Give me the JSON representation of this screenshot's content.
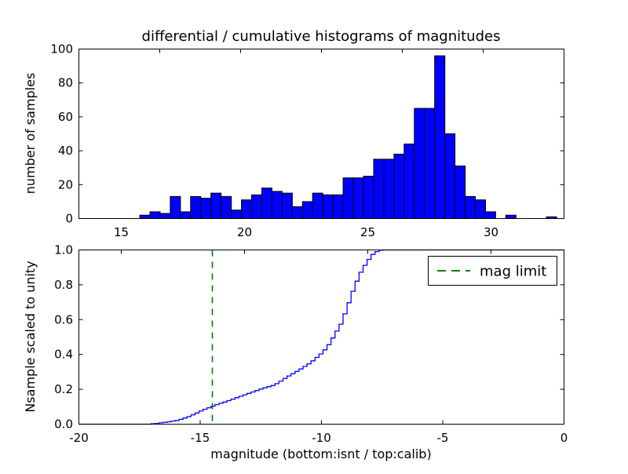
{
  "figure": {
    "background": "#ffffff",
    "frame_color": "#000000",
    "title": "differential / cumulative histograms of magnitudes"
  },
  "colors": {
    "bar_fill": "#0000ff",
    "bar_edge": "#000000",
    "cdf_line": "#0000ff",
    "mag_limit_line": "#008000"
  },
  "legend": {
    "label": "mag limit",
    "position": "upper right",
    "line_style": "dashed",
    "line_color": "#008000"
  },
  "chart_data": [
    {
      "type": "bar",
      "subtype": "histogram",
      "title": "differential / cumulative histograms of magnitudes",
      "xlabel": "",
      "ylabel": "number of samples",
      "xlim": [
        13.3,
        32.95
      ],
      "ylim": [
        0,
        100
      ],
      "xticks": [
        15,
        20,
        25,
        30
      ],
      "xtick_labels": [
        "15",
        "20",
        "25",
        "30"
      ],
      "yticks": [
        0,
        20,
        40,
        60,
        80,
        100
      ],
      "ytick_labels": [
        "0",
        "20",
        "40",
        "60",
        "80",
        "100"
      ],
      "bin_start": 15.75,
      "bin_width": 0.4125,
      "values": [
        2,
        4,
        3,
        13,
        4,
        13,
        12,
        15,
        13,
        5,
        11,
        14,
        18,
        16,
        15,
        7,
        10,
        15,
        14,
        14,
        24,
        24,
        25,
        35,
        35,
        38,
        44,
        65,
        65,
        96,
        50,
        31,
        13,
        11,
        4,
        0,
        2,
        0,
        0,
        0,
        1
      ],
      "grid": false
    },
    {
      "type": "line",
      "subtype": "cumulative-step",
      "xlabel": "magnitude (bottom:isnt / top:calib)",
      "ylabel": "Nsample scaled to unity",
      "xlim": [
        -20,
        0
      ],
      "ylim": [
        0.0,
        1.0
      ],
      "xticks": [
        -20,
        -15,
        -10,
        -5,
        0
      ],
      "xtick_labels": [
        "-20",
        "-15",
        "-10",
        "-5",
        "0"
      ],
      "yticks": [
        0.0,
        0.2,
        0.4,
        0.6,
        0.8,
        1.0
      ],
      "ytick_labels": [
        "0.0",
        "0.2",
        "0.4",
        "0.6",
        "0.8",
        "1.0"
      ],
      "cdf_points": [
        [
          -20,
          0.0
        ],
        [
          -17.2,
          0.0
        ],
        [
          -16.8,
          0.005
        ],
        [
          -16.4,
          0.013
        ],
        [
          -16.0,
          0.022
        ],
        [
          -15.6,
          0.04
        ],
        [
          -15.2,
          0.065
        ],
        [
          -15.0,
          0.08
        ],
        [
          -14.6,
          0.1
        ],
        [
          -14.5,
          0.107
        ],
        [
          -14.0,
          0.13
        ],
        [
          -13.5,
          0.155
        ],
        [
          -13.0,
          0.18
        ],
        [
          -12.5,
          0.205
        ],
        [
          -12.0,
          0.225
        ],
        [
          -11.5,
          0.27
        ],
        [
          -11.0,
          0.31
        ],
        [
          -10.5,
          0.355
        ],
        [
          -10.0,
          0.415
        ],
        [
          -9.75,
          0.46
        ],
        [
          -9.5,
          0.52
        ],
        [
          -9.25,
          0.58
        ],
        [
          -9.0,
          0.675
        ],
        [
          -8.75,
          0.775
        ],
        [
          -8.5,
          0.86
        ],
        [
          -8.25,
          0.92
        ],
        [
          -8.0,
          0.97
        ],
        [
          -7.8,
          0.99
        ],
        [
          -7.6,
          1.0
        ],
        [
          0.0,
          1.0
        ]
      ],
      "step_width": 0.165,
      "vline": {
        "x": -14.5,
        "label": "mag limit",
        "color": "#008000",
        "style": "dashed"
      },
      "legend": [
        "mag limit"
      ],
      "grid": false
    }
  ]
}
